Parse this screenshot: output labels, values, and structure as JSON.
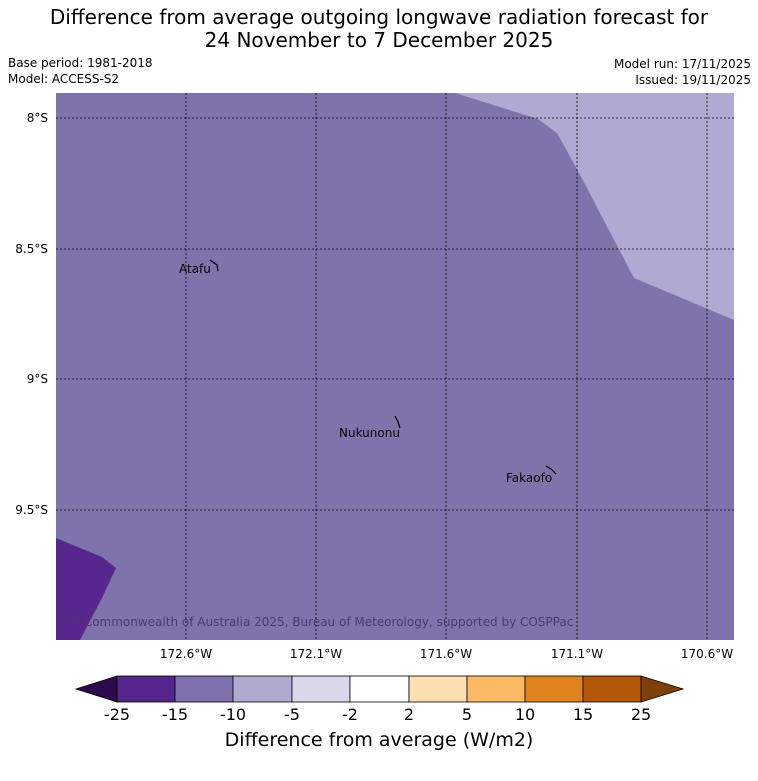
{
  "header": {
    "title_line1": "Difference from average outgoing longwave radiation forecast for",
    "title_line2": "24 November to 7 December 2025",
    "base_period": "Base period: 1981-2018",
    "model": "Model: ACCESS-S2",
    "model_run": "Model run: 17/11/2025",
    "issued": "Issued: 19/11/2025"
  },
  "map": {
    "lat_labels": [
      "8°S",
      "8.5°S",
      "9°S",
      "9.5°S"
    ],
    "lon_labels": [
      "172.6°W",
      "172.1°W",
      "171.6°W",
      "171.1°W",
      "170.6°W"
    ],
    "places": [
      {
        "name": "Atafu"
      },
      {
        "name": "Nukunonu"
      },
      {
        "name": "Fakaofo"
      }
    ],
    "copyright": "© Commonwealth of Australia 2025, Bureau of Meteorology, supported by COSPPac",
    "fill_colors": {
      "band_-15_-10": "#7f73ac",
      "band_-10_-5": "#b0a9d1",
      "band_-25_-15": "#58278e"
    }
  },
  "colorbar": {
    "title": "Difference from average (W/m2)",
    "ticks": [
      "-25",
      "-15",
      "-10",
      "-5",
      "-2",
      "2",
      "5",
      "10",
      "15",
      "25"
    ],
    "colors": [
      "#2c0a4b",
      "#55248c",
      "#7f72ac",
      "#b1aad0",
      "#d8d8ea",
      "#ffffff",
      "#fedfb4",
      "#fcb862",
      "#e0831c",
      "#b45709",
      "#7f3f0b"
    ]
  }
}
